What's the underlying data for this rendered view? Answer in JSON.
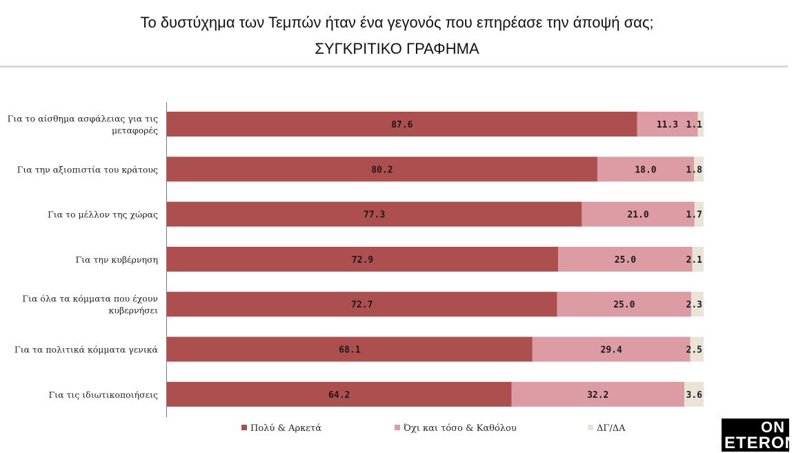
{
  "header": {
    "title": "Το δυστύχημα των Τεμπών ήταν ένα γεγονός που επηρέασε την άποψή σας;",
    "subtitle": "ΣΥΓΚΡΙΤΙΚΟ ΓΡΑΦΗΜΑ"
  },
  "logo": {
    "line1": "ON",
    "line2": "ETERON"
  },
  "chart_data": {
    "type": "bar",
    "orientation": "horizontal",
    "stacked": true,
    "categories": [
      [
        "Για το αίσθημα ασφάλειας για τις",
        "μεταφορές"
      ],
      [
        "Για την αξιοπιστία του κράτους"
      ],
      [
        "Για το μέλλον της χώρας"
      ],
      [
        "Για την κυβέρνηση"
      ],
      [
        "Για όλα τα κόμματα που έχουν",
        "κυβερνήσει"
      ],
      [
        "Για τα πολιτικά κόμματα γενικά"
      ],
      [
        "Για τις ιδιωτικοποιήσεις"
      ]
    ],
    "series": [
      {
        "name": "Πολύ & Αρκετά",
        "color": "#ad4f4f",
        "values": [
          87.6,
          80.2,
          77.3,
          72.9,
          72.7,
          68.1,
          64.2
        ]
      },
      {
        "name": "Όχι και τόσο & Καθόλου",
        "color": "#dd9ca3",
        "values": [
          11.3,
          18.0,
          21.0,
          25.0,
          25.0,
          29.4,
          32.2
        ]
      },
      {
        "name": "ΔΓ/ΔΑ",
        "color": "#ebe3d8",
        "values": [
          1.1,
          1.8,
          1.7,
          2.1,
          2.3,
          2.5,
          3.6
        ]
      }
    ],
    "xlim": [
      0,
      100
    ],
    "legend": "bottom",
    "grid": false
  }
}
